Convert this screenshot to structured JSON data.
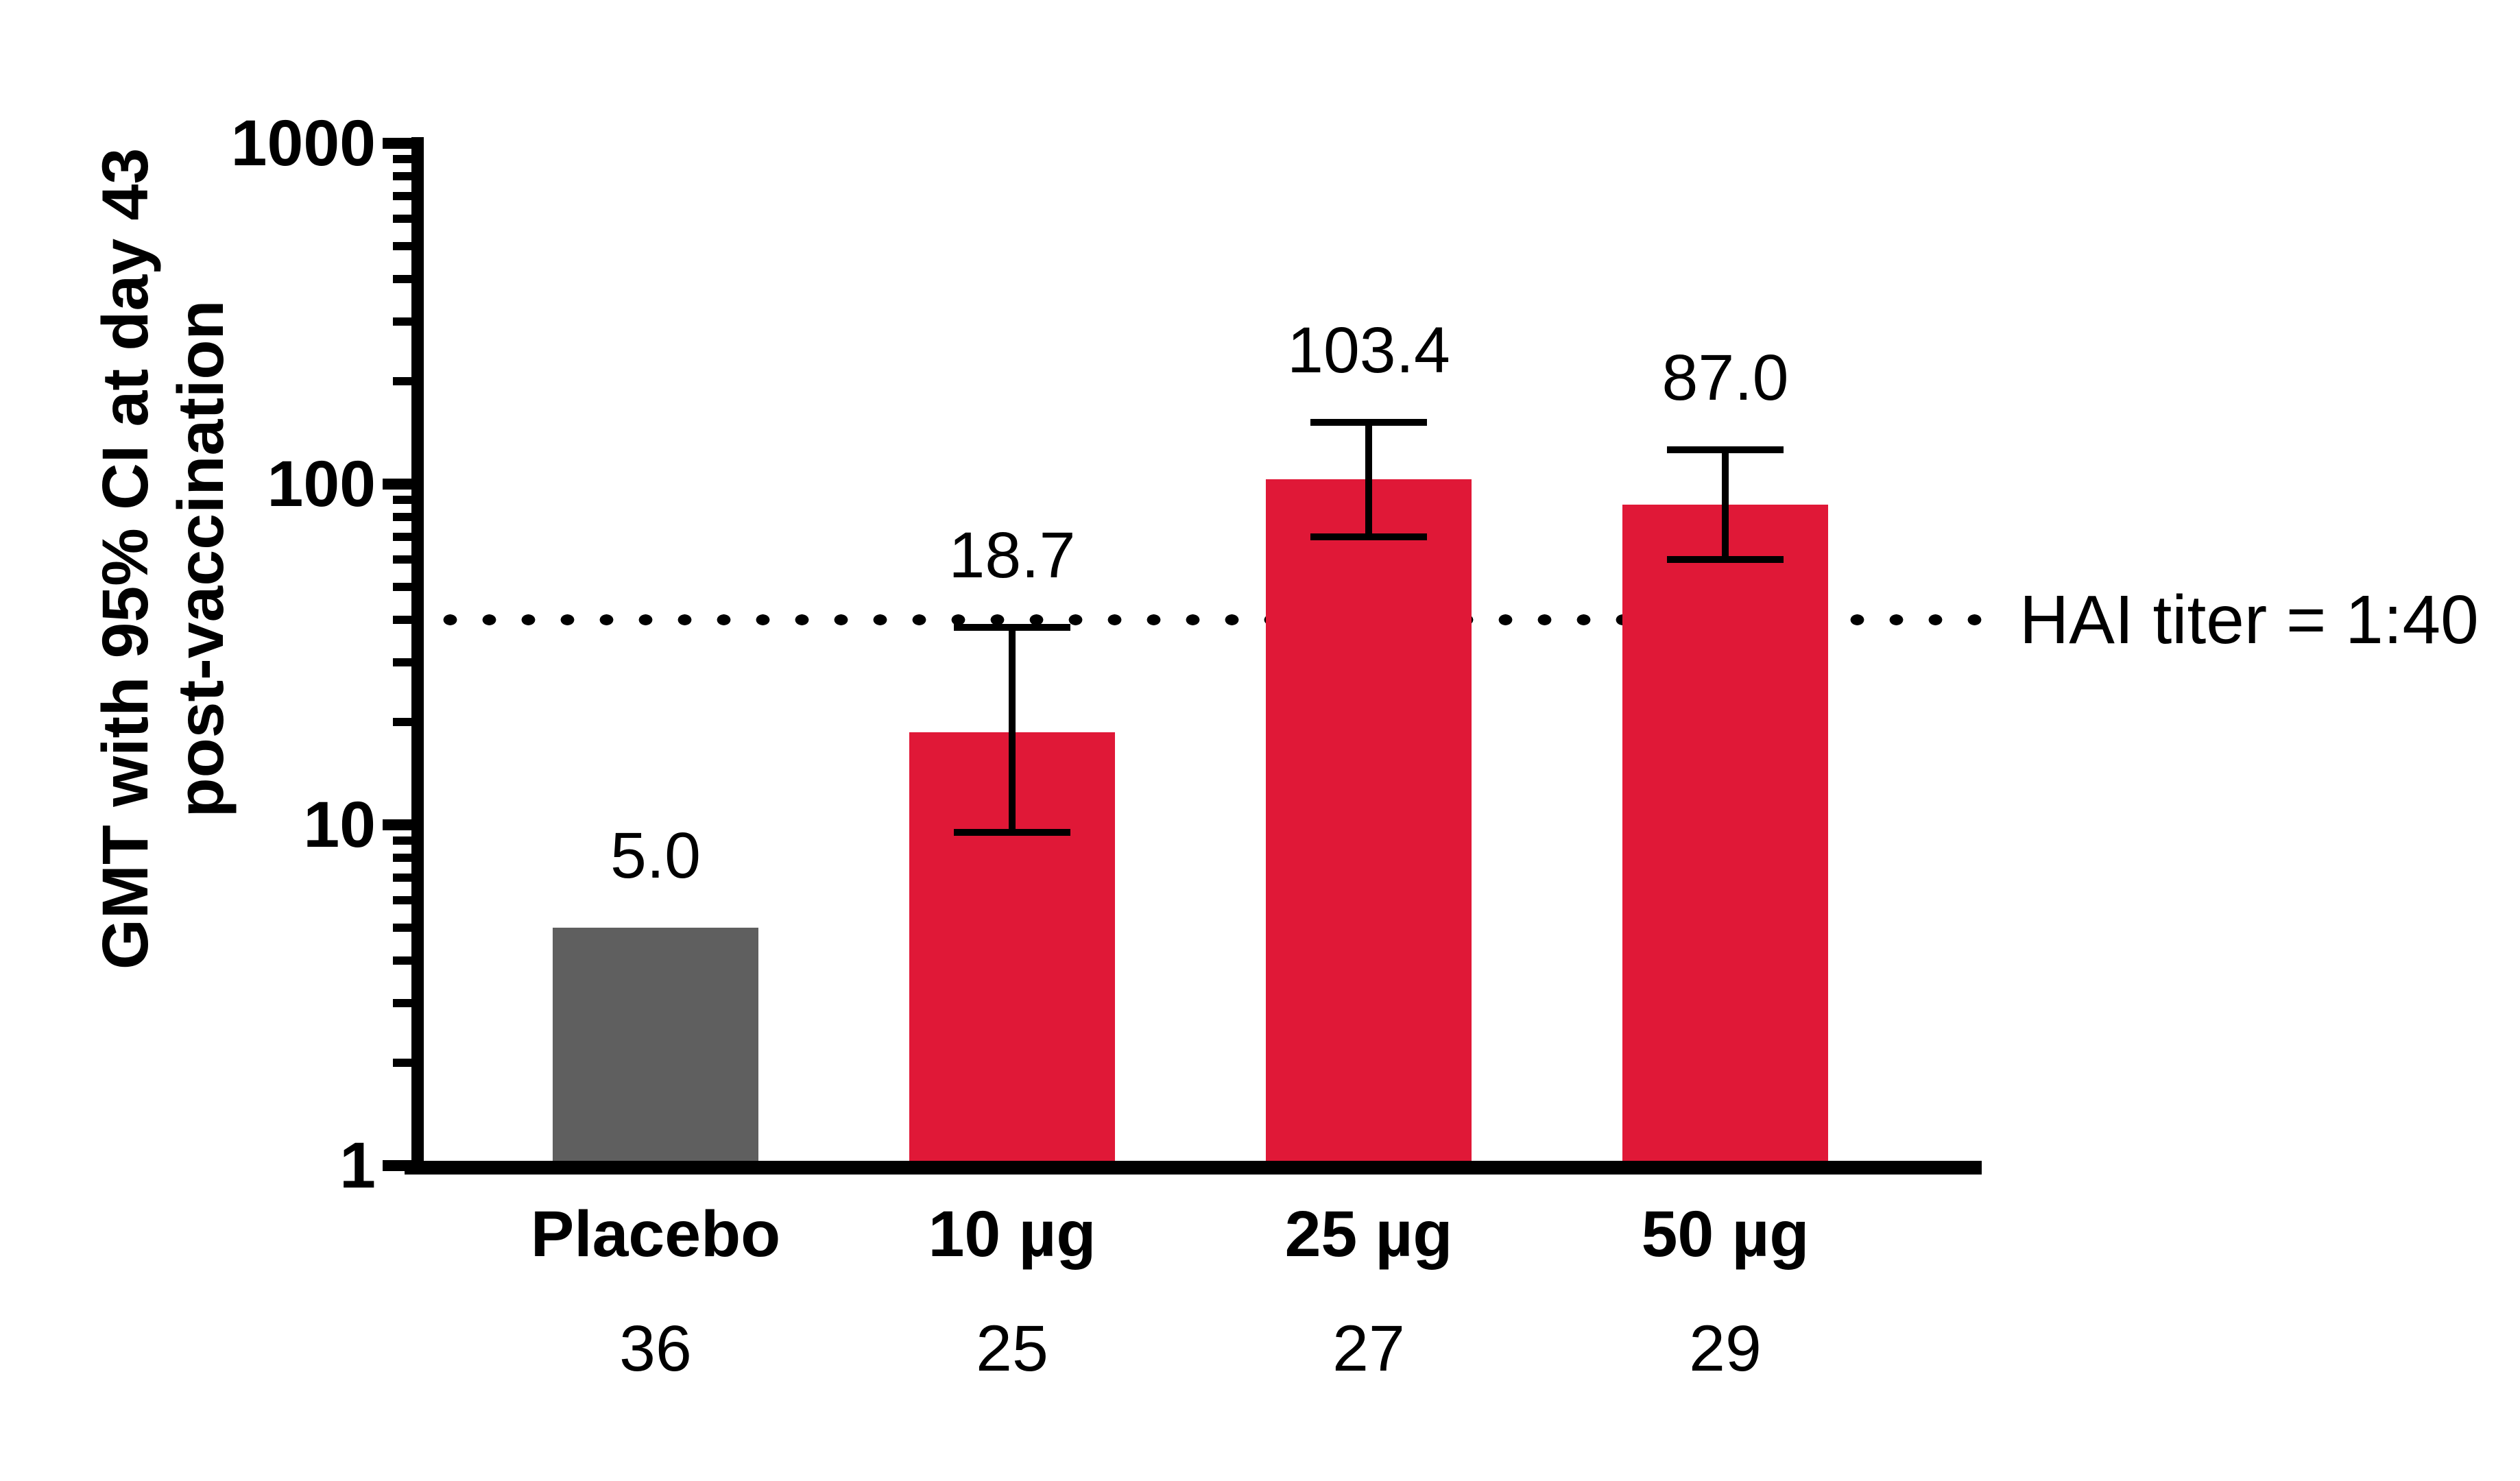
{
  "background": "#FFFFFF",
  "colors": {
    "axis": "#000000",
    "text": "#000000",
    "bar_red": "#E01837",
    "bar_gray": "#5F5F5F"
  },
  "chart_data": {
    "type": "bar",
    "title": "",
    "ylabel_lines": [
      "GMT with 95% CI at day 43",
      "post-vaccination"
    ],
    "yscale": "log",
    "ylim": [
      1,
      1000
    ],
    "yticks": [
      "1",
      "10",
      "100",
      "1000"
    ],
    "grid": "off",
    "legend": "none",
    "categories": [
      "Placebo",
      "10 µg",
      "25 µg",
      "50 µg"
    ],
    "n_per_group": [
      "36",
      "25",
      "27",
      "29"
    ],
    "values": [
      5.0,
      18.7,
      103.4,
      87.0
    ],
    "value_labels": [
      "5.0",
      "18.7",
      "103.4",
      "87.0"
    ],
    "ci_low": [
      null,
      9.5,
      70.0,
      60.0
    ],
    "ci_high": [
      null,
      38.0,
      152.0,
      126.0
    ],
    "bar_colors": [
      "#5F5F5F",
      "#E01837",
      "#E01837",
      "#E01837"
    ],
    "reference_line": {
      "value": 40,
      "label": "HAI titer = 1:40"
    }
  }
}
